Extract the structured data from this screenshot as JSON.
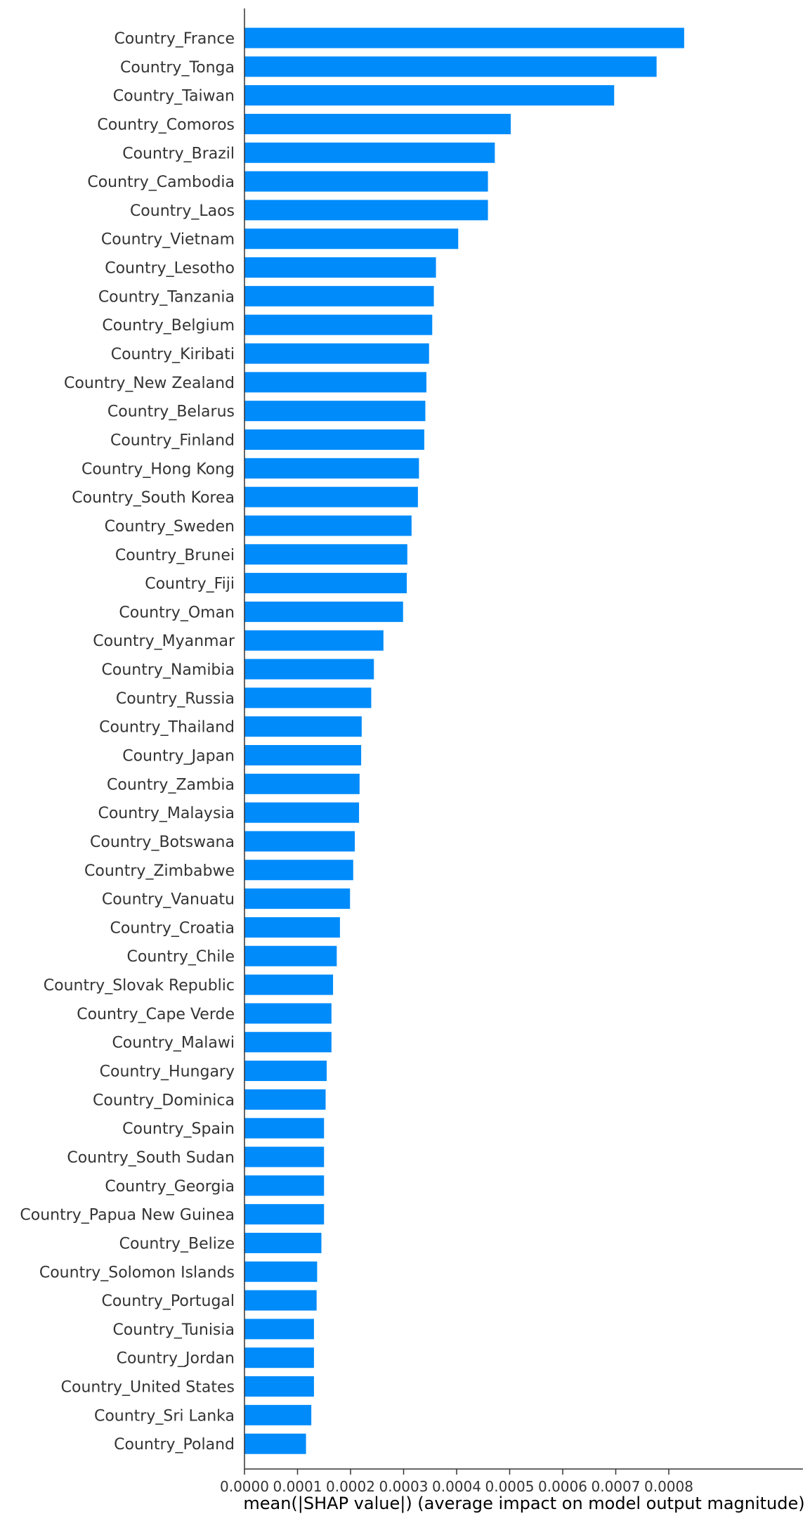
{
  "chart_data": {
    "type": "bar",
    "orientation": "horizontal",
    "xlabel": "mean(|SHAP value|) (average impact on model output magnitude)",
    "xlim": [
      0,
      0.00086
    ],
    "xticks": [
      0.0,
      0.0001,
      0.0002,
      0.0003,
      0.0004,
      0.0005,
      0.0006,
      0.0007,
      0.0008
    ],
    "xtick_labels": [
      "0.0000",
      "0.0001",
      "0.0002",
      "0.0003",
      "0.0004",
      "0.0005",
      "0.0006",
      "0.0007",
      "0.0008"
    ],
    "bar_color": "#008bfb",
    "categories": [
      "Country_France",
      "Country_Tonga",
      "Country_Taiwan",
      "Country_Comoros",
      "Country_Brazil",
      "Country_Cambodia",
      "Country_Laos",
      "Country_Vietnam",
      "Country_Lesotho",
      "Country_Tanzania",
      "Country_Belgium",
      "Country_Kiribati",
      "Country_New Zealand",
      "Country_Belarus",
      "Country_Finland",
      "Country_Hong Kong",
      "Country_South Korea",
      "Country_Sweden",
      "Country_Brunei",
      "Country_Fiji",
      "Country_Oman",
      "Country_Myanmar",
      "Country_Namibia",
      "Country_Russia",
      "Country_Thailand",
      "Country_Japan",
      "Country_Zambia",
      "Country_Malaysia",
      "Country_Botswana",
      "Country_Zimbabwe",
      "Country_Vanuatu",
      "Country_Croatia",
      "Country_Chile",
      "Country_Slovak Republic",
      "Country_Cape Verde",
      "Country_Malawi",
      "Country_Hungary",
      "Country_Dominica",
      "Country_Spain",
      "Country_South Sudan",
      "Country_Georgia",
      "Country_Papua New Guinea",
      "Country_Belize",
      "Country_Solomon Islands",
      "Country_Portugal",
      "Country_Tunisia",
      "Country_Jordan",
      "Country_United States",
      "Country_Sri Lanka",
      "Country_Poland"
    ],
    "values": [
      0.000829,
      0.000777,
      0.000697,
      0.000502,
      0.000472,
      0.000459,
      0.000459,
      0.000403,
      0.000361,
      0.000357,
      0.000354,
      0.000348,
      0.000343,
      0.000341,
      0.000339,
      0.000329,
      0.000327,
      0.000315,
      0.000307,
      0.000306,
      0.000299,
      0.000262,
      0.000244,
      0.000239,
      0.000221,
      0.00022,
      0.000217,
      0.000216,
      0.000208,
      0.000205,
      0.000199,
      0.00018,
      0.000174,
      0.000167,
      0.000164,
      0.000164,
      0.000155,
      0.000153,
      0.00015,
      0.00015,
      0.00015,
      0.00015,
      0.000145,
      0.000137,
      0.000136,
      0.000131,
      0.000131,
      0.000131,
      0.000126,
      0.000116
    ]
  }
}
